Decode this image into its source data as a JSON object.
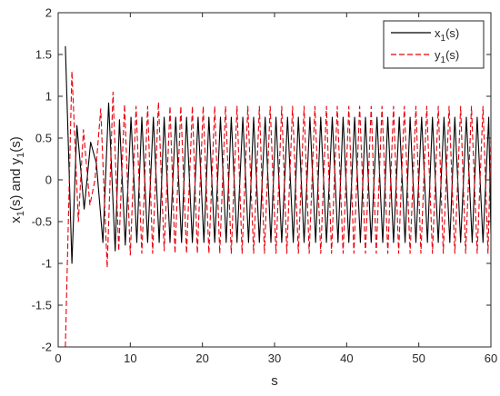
{
  "chart_data": {
    "type": "line",
    "title": "",
    "xlabel": "s",
    "ylabel_parts": [
      "x",
      "1",
      "(s) and y",
      "1",
      "(s)"
    ],
    "xlim": [
      0,
      60
    ],
    "ylim": [
      -2,
      2
    ],
    "xticks": [
      0,
      10,
      20,
      30,
      40,
      50,
      60
    ],
    "yticks": [
      -2,
      -1.5,
      -1,
      -0.5,
      0,
      0.5,
      1,
      1.5,
      2
    ],
    "grid": false,
    "legend_position": "top-right",
    "series": [
      {
        "name_main": "x",
        "name_sub": "1",
        "name_suffix": "(s)",
        "color": "#000000",
        "dash": "solid",
        "points": [
          [
            1.0,
            1.6
          ],
          [
            1.9,
            -1.0
          ],
          [
            2.6,
            0.65
          ],
          [
            3.6,
            -0.35
          ],
          [
            4.5,
            0.45
          ],
          [
            5.3,
            0.2
          ],
          [
            6.2,
            -0.75
          ],
          [
            7.0,
            0.92
          ],
          [
            7.9,
            -0.85
          ],
          [
            8.5,
            0.72
          ],
          [
            9.3,
            -0.78
          ],
          [
            10.1,
            0.75
          ],
          [
            10.9,
            -0.75
          ],
          [
            11.6,
            0.75
          ],
          [
            12.4,
            -0.75
          ],
          [
            13.2,
            0.75
          ],
          [
            14.0,
            -0.75
          ],
          [
            14.7,
            0.75
          ],
          [
            15.5,
            -0.75
          ],
          [
            16.3,
            0.75
          ],
          [
            17.1,
            -0.75
          ],
          [
            17.8,
            0.75
          ],
          [
            18.6,
            -0.75
          ],
          [
            19.4,
            0.75
          ],
          [
            20.2,
            -0.75
          ],
          [
            20.9,
            0.75
          ],
          [
            21.7,
            -0.75
          ],
          [
            22.5,
            0.75
          ],
          [
            23.3,
            -0.75
          ],
          [
            24.0,
            0.75
          ],
          [
            24.8,
            -0.75
          ],
          [
            25.6,
            0.75
          ],
          [
            26.4,
            -0.75
          ],
          [
            27.1,
            0.75
          ],
          [
            27.9,
            -0.75
          ],
          [
            28.7,
            0.75
          ],
          [
            29.5,
            -0.75
          ],
          [
            30.2,
            0.75
          ],
          [
            31.0,
            -0.75
          ],
          [
            31.8,
            0.75
          ],
          [
            32.6,
            -0.75
          ],
          [
            33.3,
            0.75
          ],
          [
            34.1,
            -0.75
          ],
          [
            34.9,
            0.75
          ],
          [
            35.7,
            -0.75
          ],
          [
            36.4,
            0.75
          ],
          [
            37.2,
            -0.75
          ],
          [
            38.0,
            0.75
          ],
          [
            38.8,
            -0.75
          ],
          [
            39.5,
            0.75
          ],
          [
            40.3,
            -0.75
          ],
          [
            41.1,
            0.75
          ],
          [
            41.9,
            -0.75
          ],
          [
            42.6,
            0.75
          ],
          [
            43.4,
            -0.75
          ],
          [
            44.2,
            0.75
          ],
          [
            45.0,
            -0.75
          ],
          [
            45.7,
            0.75
          ],
          [
            46.5,
            -0.75
          ],
          [
            47.3,
            0.75
          ],
          [
            48.1,
            -0.75
          ],
          [
            48.8,
            0.75
          ],
          [
            49.6,
            -0.75
          ],
          [
            50.4,
            0.75
          ],
          [
            51.2,
            -0.75
          ],
          [
            51.9,
            0.75
          ],
          [
            52.7,
            -0.75
          ],
          [
            53.5,
            0.75
          ],
          [
            54.3,
            -0.75
          ],
          [
            55.0,
            0.75
          ],
          [
            55.8,
            -0.75
          ],
          [
            56.6,
            0.75
          ],
          [
            57.4,
            -0.75
          ],
          [
            58.1,
            0.75
          ],
          [
            58.9,
            -0.75
          ],
          [
            59.7,
            0.75
          ],
          [
            60.0,
            -0.65
          ]
        ]
      },
      {
        "name_main": "y",
        "name_sub": "1",
        "name_suffix": "(s)",
        "color": "#e8000b",
        "dash": "dashed",
        "points": [
          [
            1.0,
            -2.0
          ],
          [
            1.9,
            1.3
          ],
          [
            2.8,
            -0.5
          ],
          [
            3.5,
            0.6
          ],
          [
            4.4,
            -0.3
          ],
          [
            5.1,
            0.0
          ],
          [
            5.9,
            0.85
          ],
          [
            6.8,
            -1.05
          ],
          [
            7.6,
            1.05
          ],
          [
            8.4,
            -0.85
          ],
          [
            9.2,
            0.9
          ],
          [
            10.0,
            -0.9
          ],
          [
            10.8,
            0.88
          ],
          [
            11.6,
            -0.88
          ],
          [
            12.4,
            0.88
          ],
          [
            13.1,
            -0.88
          ],
          [
            13.9,
            0.93
          ],
          [
            14.7,
            -0.85
          ],
          [
            15.5,
            0.88
          ],
          [
            16.2,
            -0.88
          ],
          [
            17.0,
            0.88
          ],
          [
            17.8,
            -0.88
          ],
          [
            18.6,
            0.88
          ],
          [
            19.3,
            -0.88
          ],
          [
            20.1,
            0.88
          ],
          [
            20.9,
            -0.88
          ],
          [
            21.7,
            0.88
          ],
          [
            22.4,
            -0.88
          ],
          [
            23.2,
            0.88
          ],
          [
            24.0,
            -0.88
          ],
          [
            24.8,
            0.88
          ],
          [
            25.5,
            -0.88
          ],
          [
            26.3,
            0.88
          ],
          [
            27.1,
            -0.88
          ],
          [
            27.9,
            0.88
          ],
          [
            28.6,
            -0.88
          ],
          [
            29.4,
            0.88
          ],
          [
            30.2,
            -0.88
          ],
          [
            31.0,
            0.88
          ],
          [
            31.7,
            -0.88
          ],
          [
            32.5,
            0.88
          ],
          [
            33.3,
            -0.88
          ],
          [
            34.1,
            0.88
          ],
          [
            34.8,
            -0.88
          ],
          [
            35.6,
            0.88
          ],
          [
            36.4,
            -0.88
          ],
          [
            37.2,
            0.88
          ],
          [
            37.9,
            -0.88
          ],
          [
            38.7,
            0.88
          ],
          [
            39.5,
            -0.88
          ],
          [
            40.3,
            0.88
          ],
          [
            41.0,
            -0.88
          ],
          [
            41.8,
            0.88
          ],
          [
            42.6,
            -0.88
          ],
          [
            43.4,
            0.88
          ],
          [
            44.1,
            -0.88
          ],
          [
            44.9,
            0.88
          ],
          [
            45.7,
            -0.88
          ],
          [
            46.5,
            0.88
          ],
          [
            47.2,
            -0.88
          ],
          [
            48.0,
            0.88
          ],
          [
            48.8,
            -0.88
          ],
          [
            49.6,
            0.88
          ],
          [
            50.3,
            -0.88
          ],
          [
            51.1,
            0.88
          ],
          [
            51.9,
            -0.88
          ],
          [
            52.7,
            0.88
          ],
          [
            53.4,
            -0.88
          ],
          [
            54.2,
            0.88
          ],
          [
            55.0,
            -0.88
          ],
          [
            55.8,
            0.88
          ],
          [
            56.5,
            -0.88
          ],
          [
            57.3,
            0.88
          ],
          [
            58.1,
            -0.88
          ],
          [
            58.9,
            0.88
          ],
          [
            59.6,
            -0.88
          ],
          [
            60.0,
            0.5
          ]
        ]
      }
    ]
  }
}
